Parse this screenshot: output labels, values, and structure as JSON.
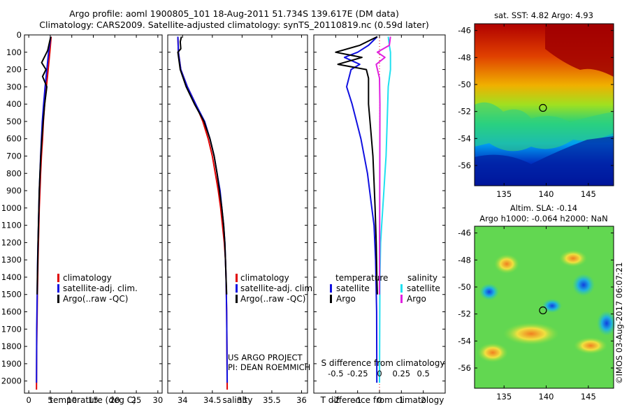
{
  "header": {
    "title_line1": "Argo profile: aoml 1900805_101 18-Aug-2011 51.734S 139.617E (DM data)",
    "title_line2": "Climatology: CARS2009. Satellite-adjusted climatology: synTS_20110819.nc (0.59d later)"
  },
  "colors": {
    "climatology": "#e00000",
    "satellite": "#1010e0",
    "argo": "#000000",
    "salinity_satellite": "#20e0f0",
    "salinity_argo": "#e020e0"
  },
  "legends": {
    "temp": [
      "climatology",
      "satellite-adj. clim.",
      "Argo(..raw -QC)"
    ],
    "sal": [
      "climatology",
      "satellite-adj. clim.",
      "Argo(..raw -QC)"
    ],
    "diff_temperature_header": "temperature",
    "diff_salinity_header": "salinity",
    "diff_temperature_items": [
      "satellite",
      "Argo"
    ],
    "diff_salinity_items": [
      "satellite",
      "Argo"
    ]
  },
  "credits": {
    "project": "US ARGO PROJECT",
    "pi": "PI: DEAN ROEMMICH",
    "watermark": "©IMOS 03-Aug-2017 06:07:21"
  },
  "maps": {
    "sst_title": "sat. SST: 4.82 Argo: 4.93",
    "sla_title_line1": "Altim. SLA: -0.14",
    "sla_title_line2": "Argo h1000: -0.064 h2000: NaN",
    "lat_ticks": [
      "-46",
      "-48",
      "-50",
      "-52",
      "-54",
      "-56"
    ],
    "lon_ticks": [
      "135",
      "140",
      "145"
    ],
    "lat_values": [
      -46,
      -48,
      -50,
      -52,
      -54,
      -56
    ],
    "lon_values": [
      135,
      140,
      145
    ],
    "lat_range": [
      -57.5,
      -45.5
    ],
    "lon_range": [
      131.5,
      148
    ],
    "profile_marker": {
      "lon": 139.617,
      "lat": -51.734
    }
  },
  "chart_data": [
    {
      "type": "line",
      "xlabel": "temperature (deg C)",
      "ylabel": "",
      "xlim": [
        -1,
        31
      ],
      "ylim": [
        2070,
        0
      ],
      "xtick_values": [
        0,
        5,
        10,
        15,
        20,
        25,
        30
      ],
      "xticks": [
        "0",
        "5",
        "10",
        "15",
        "20",
        "25",
        "30"
      ],
      "ytick_values": [
        0,
        100,
        200,
        300,
        400,
        500,
        600,
        700,
        800,
        900,
        1000,
        1100,
        1200,
        1300,
        1400,
        1500,
        1600,
        1700,
        1800,
        1900,
        2000
      ],
      "yticks": [
        "0",
        "100",
        "200",
        "300",
        "400",
        "500",
        "600",
        "700",
        "800",
        "900",
        "1000",
        "1100",
        "1200",
        "1300",
        "1400",
        "1500",
        "1600",
        "1700",
        "1800",
        "1900",
        "2000"
      ],
      "series": [
        {
          "name": "climatology",
          "x": [
            5.2,
            4.9,
            4.5,
            4.1,
            3.7,
            3.4,
            3.2,
            2.95,
            2.75,
            2.6,
            2.45,
            2.35,
            2.25,
            2.15,
            2.08,
            2.0,
            1.95,
            1.85,
            1.8
          ],
          "y": [
            10,
            100,
            200,
            300,
            400,
            500,
            600,
            700,
            800,
            900,
            1000,
            1100,
            1200,
            1300,
            1400,
            1500,
            1600,
            1800,
            2050
          ]
        },
        {
          "name": "satellite-adj. clim.",
          "x": [
            5.1,
            4.6,
            4.2,
            3.8,
            3.45,
            3.15,
            2.95,
            2.75,
            2.6,
            2.45,
            2.35,
            2.25,
            2.15,
            2.05,
            1.95,
            1.85,
            1.8
          ],
          "y": [
            10,
            100,
            200,
            300,
            400,
            500,
            600,
            700,
            800,
            900,
            1000,
            1100,
            1200,
            1300,
            1500,
            1700,
            2010
          ]
        },
        {
          "name": "Argo(..raw -QC)",
          "x": [
            5.1,
            4.4,
            3.0,
            4.0,
            3.2,
            4.2,
            3.7,
            3.35,
            3.05,
            2.8,
            2.6,
            2.45,
            2.35,
            2.25,
            2.15,
            2.08,
            2.0,
            1.95
          ],
          "y": [
            10,
            90,
            160,
            200,
            240,
            300,
            400,
            500,
            600,
            700,
            800,
            900,
            1000,
            1100,
            1200,
            1300,
            1400,
            1500
          ]
        }
      ]
    },
    {
      "type": "line",
      "xlabel": "salinity",
      "ylabel": "",
      "xlim": [
        33.75,
        36.1
      ],
      "ylim": [
        2070,
        0
      ],
      "xtick_values": [
        34,
        34.5,
        35,
        35.5,
        36
      ],
      "xticks": [
        "34",
        "34.5",
        "35",
        "35.5",
        "36"
      ],
      "series": [
        {
          "name": "climatology",
          "x": [
            33.92,
            33.93,
            33.97,
            34.08,
            34.22,
            34.34,
            34.43,
            34.5,
            34.55,
            34.6,
            34.64,
            34.67,
            34.7,
            34.72,
            34.73,
            34.74,
            34.745,
            34.75
          ],
          "y": [
            10,
            100,
            200,
            300,
            400,
            500,
            600,
            700,
            800,
            900,
            1000,
            1100,
            1200,
            1300,
            1400,
            1600,
            1800,
            2050
          ]
        },
        {
          "name": "satellite-adj. clim.",
          "x": [
            33.92,
            33.93,
            33.97,
            34.08,
            34.22,
            34.37,
            34.46,
            34.53,
            34.58,
            34.63,
            34.66,
            34.69,
            34.71,
            34.72,
            34.73,
            34.74,
            34.745,
            34.75
          ],
          "y": [
            10,
            100,
            200,
            300,
            400,
            500,
            600,
            700,
            800,
            900,
            1000,
            1100,
            1200,
            1300,
            1400,
            1600,
            1800,
            2010
          ]
        },
        {
          "name": "Argo(..raw -QC)",
          "x": [
            33.98,
            33.96,
            33.97,
            33.92,
            33.96,
            34.06,
            34.2,
            34.36,
            34.46,
            34.53,
            34.58,
            34.62,
            34.66,
            34.69,
            34.71,
            34.72,
            34.73,
            34.74
          ],
          "y": [
            10,
            40,
            80,
            100,
            200,
            300,
            400,
            500,
            600,
            700,
            800,
            900,
            1000,
            1100,
            1200,
            1300,
            1400,
            1500
          ]
        }
      ]
    },
    {
      "type": "line",
      "xlabel": "T difference from climatology",
      "ylabel": "",
      "secondary_xlabel": "S difference from climatology",
      "xlim": [
        -3,
        3
      ],
      "ylim": [
        2070,
        0
      ],
      "xtick_values": [
        -2,
        -1,
        0,
        1,
        2
      ],
      "xticks": [
        "-2",
        "-1",
        "0",
        "1",
        "2"
      ],
      "secondary_xtick_values": [
        -2,
        -1,
        0,
        1,
        2
      ],
      "secondary_xticks": [
        "-0.5",
        "-0.25",
        "0",
        "0.25",
        "0.5"
      ],
      "series": [
        {
          "name": "temperature satellite",
          "x": [
            -0.1,
            -0.5,
            -1.0,
            -1.6,
            -0.9,
            -1.3,
            -1.5,
            -1.25,
            -1.05,
            -0.85,
            -0.7,
            -0.55,
            -0.45,
            -0.35,
            -0.25,
            -0.18,
            -0.13,
            -0.12
          ],
          "y": [
            10,
            60,
            100,
            130,
            170,
            200,
            300,
            400,
            500,
            600,
            700,
            800,
            900,
            1000,
            1100,
            1300,
            1600,
            2010
          ]
        },
        {
          "name": "temperature Argo",
          "x": [
            -0.1,
            -0.9,
            -2.0,
            -0.8,
            -1.9,
            -0.6,
            -0.5,
            -0.5,
            -0.4,
            -0.3,
            -0.25,
            -0.2,
            -0.15,
            -0.12,
            -0.1
          ],
          "y": [
            10,
            60,
            100,
            130,
            170,
            200,
            250,
            400,
            550,
            700,
            850,
            1000,
            1200,
            1400,
            1500
          ]
        },
        {
          "name": "salinity satellite",
          "x": [
            0.4,
            0.45,
            0.5,
            0.5,
            0.4,
            0.35,
            0.3,
            0.25,
            0.2,
            0.15,
            0.1,
            0.05,
            0.02,
            0.0
          ],
          "y": [
            10,
            60,
            100,
            200,
            300,
            500,
            700,
            800,
            900,
            1000,
            1100,
            1200,
            1400,
            2010
          ]
        },
        {
          "name": "salinity Argo",
          "x": [
            0.5,
            0.45,
            -0.1,
            0.25,
            -0.15,
            0.0,
            0.02,
            0.0
          ],
          "y": [
            10,
            60,
            100,
            130,
            170,
            250,
            400,
            1500
          ]
        }
      ]
    }
  ]
}
